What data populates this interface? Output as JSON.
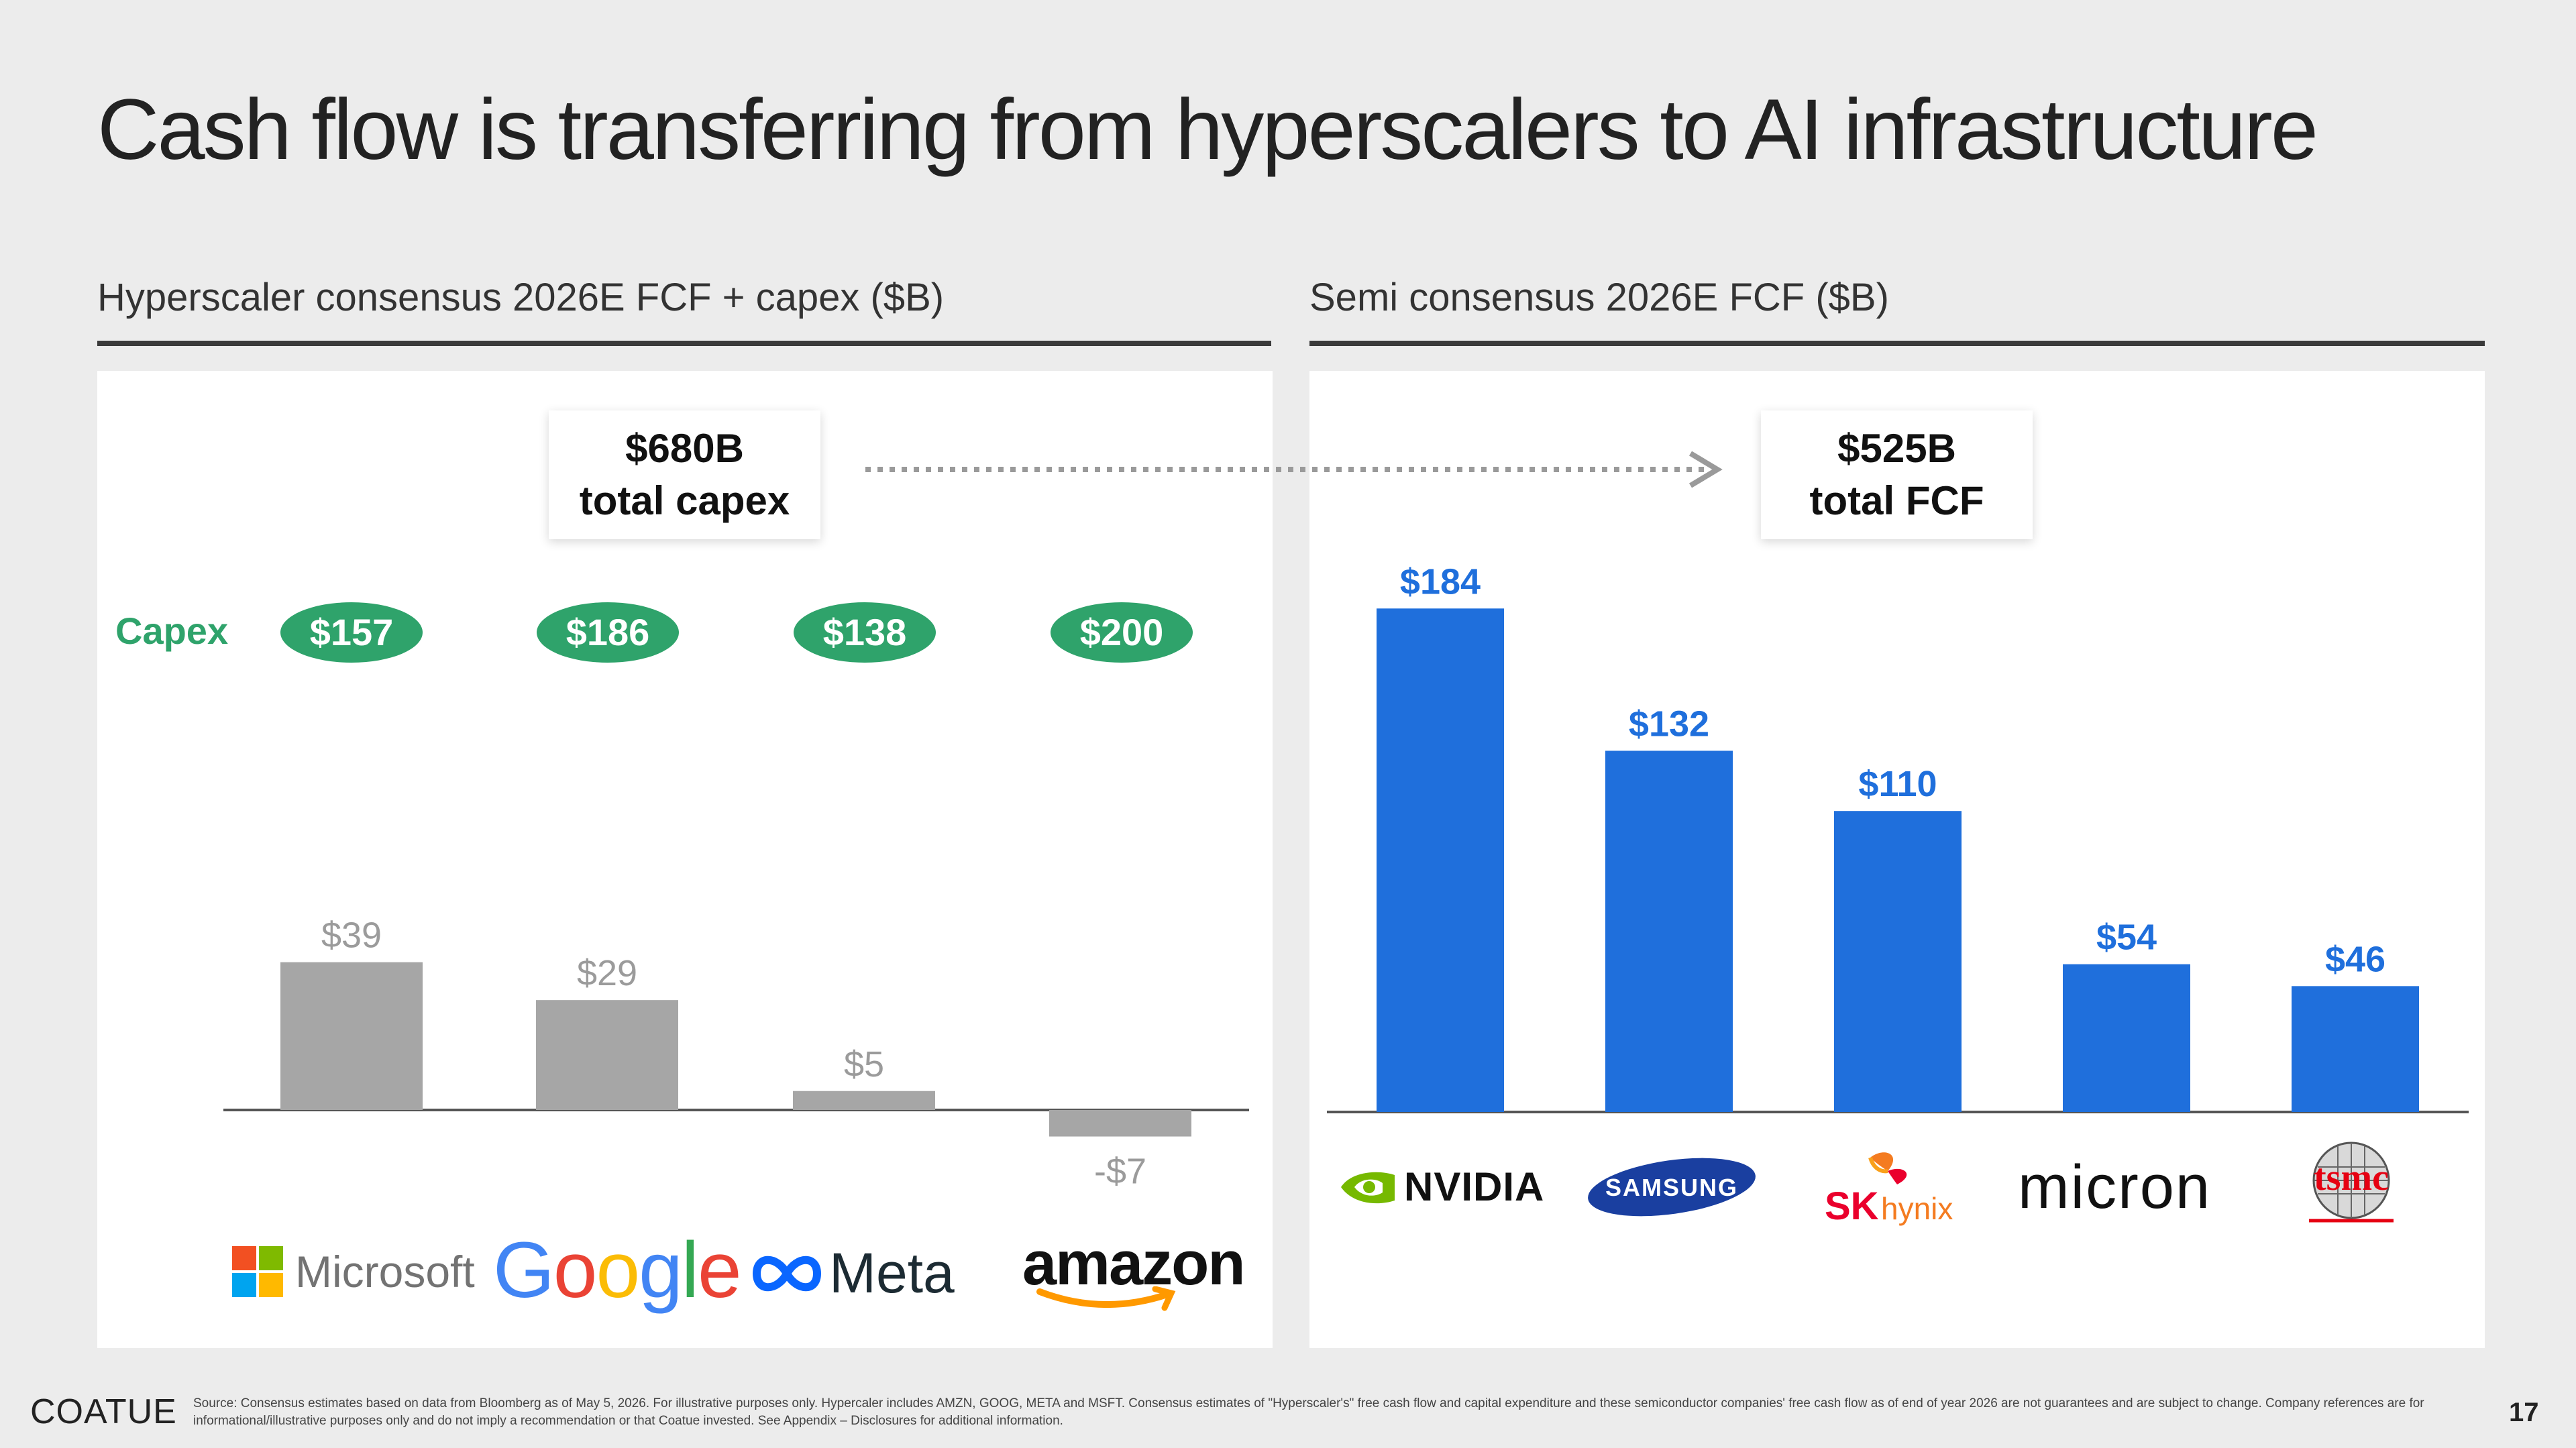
{
  "title": "Cash flow is transferring from hyperscalers to AI infrastructure",
  "left_subtitle": "Hyperscaler consensus 2026E FCF + capex ($B)",
  "right_subtitle": "Semi consensus 2026E FCF ($B)",
  "capex_callout": {
    "line1": "$680B",
    "line2": "total capex"
  },
  "fcf_callout": {
    "line1": "$525B",
    "line2": "total FCF"
  },
  "capex_row_label": "Capex",
  "capex_values": [
    "$157",
    "$186",
    "$138",
    "$200"
  ],
  "logos": {
    "microsoft": "Microsoft",
    "google": "Google",
    "meta": "Meta",
    "amazon": "amazon",
    "nvidia": "NVIDIA",
    "samsung": "SAMSUNG",
    "skhynix_sk": "SK",
    "skhynix_hynix": "hynix",
    "micron": "micron",
    "tsmc": "tsmc"
  },
  "colors": {
    "capex_green": "#2fa36b",
    "hyperscaler_bar": "#a6a6a6",
    "semi_bar": "#1f6fdc",
    "semi_label": "#1f6fdc",
    "hyperscaler_label": "#9b9b9b"
  },
  "chart_data": [
    {
      "type": "bar",
      "title": "Hyperscaler consensus 2026E FCF + capex ($B)",
      "categories": [
        "Microsoft",
        "Google",
        "Meta",
        "amazon"
      ],
      "values": [
        39,
        29,
        5,
        -7
      ],
      "value_labels": [
        "$39",
        "$29",
        "$5",
        "-$7"
      ],
      "capex": [
        157,
        186,
        138,
        200
      ],
      "ylim": [
        -7,
        39
      ],
      "grid": false,
      "legend": "none"
    },
    {
      "type": "bar",
      "title": "Semi consensus 2026E FCF ($B)",
      "categories": [
        "NVIDIA",
        "SAMSUNG",
        "SK hynix",
        "micron",
        "tsmc"
      ],
      "values": [
        184,
        132,
        110,
        54,
        46
      ],
      "value_labels": [
        "$184",
        "$132",
        "$110",
        "$54",
        "$46"
      ],
      "ylim": [
        0,
        184
      ],
      "grid": false,
      "legend": "none"
    }
  ],
  "footer": {
    "brand": "COATUE",
    "source": "Source: Consensus estimates based on data from Bloomberg as of May 5, 2026. For illustrative purposes only. Hypercaler includes AMZN, GOOG, META and MSFT. Consensus estimates of \"Hyperscaler's\" free cash flow and capital expenditure and these semiconductor companies' free cash flow as of end of year 2026 are not guarantees and are subject to change. Company references are for informational/illustrative purposes only and do not imply a recommendation or that Coatue invested. See Appendix – Disclosures for additional information.",
    "page": "17"
  }
}
